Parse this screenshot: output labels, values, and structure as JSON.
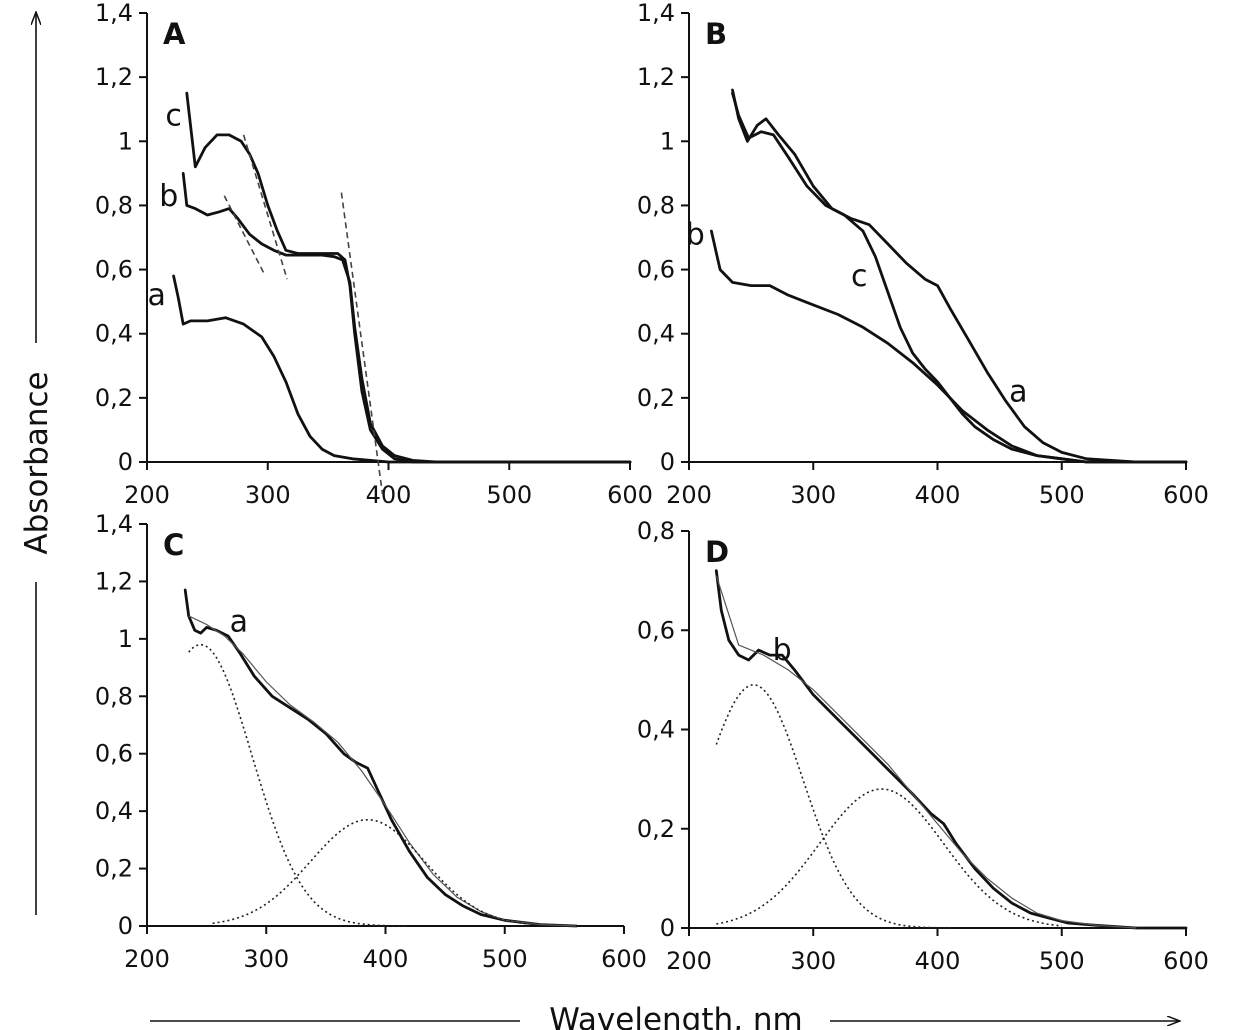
{
  "figure": {
    "ylabel": "Absorbance",
    "xlabel": "Wavelength, nm"
  },
  "chart_data": [
    {
      "type": "line",
      "panel": "A",
      "xlim": [
        200,
        600
      ],
      "ylim": [
        0,
        1.4
      ],
      "x_ticks": [
        "200",
        "300",
        "400",
        "500",
        "600"
      ],
      "y_ticks": [
        "0",
        "0,2",
        "0,4",
        "0,6",
        "0,8",
        "1",
        "1,2",
        "1,4"
      ],
      "series": [
        {
          "name": "a",
          "label_at": [
            208,
            0.52
          ],
          "line_style": "solid",
          "points": [
            [
              222,
              0.58
            ],
            [
              226,
              0.51
            ],
            [
              230,
              0.43
            ],
            [
              236,
              0.44
            ],
            [
              250,
              0.44
            ],
            [
              265,
              0.45
            ],
            [
              280,
              0.43
            ],
            [
              295,
              0.39
            ],
            [
              305,
              0.33
            ],
            [
              315,
              0.25
            ],
            [
              325,
              0.15
            ],
            [
              335,
              0.08
            ],
            [
              345,
              0.04
            ],
            [
              355,
              0.02
            ],
            [
              370,
              0.01
            ],
            [
              400,
              0
            ],
            [
              600,
              0
            ]
          ]
        },
        {
          "name": "b",
          "label_at": [
            218,
            0.83
          ],
          "line_style": "solid",
          "points": [
            [
              230,
              0.9
            ],
            [
              233,
              0.8
            ],
            [
              240,
              0.79
            ],
            [
              250,
              0.77
            ],
            [
              260,
              0.78
            ],
            [
              268,
              0.79
            ],
            [
              275,
              0.76
            ],
            [
              285,
              0.71
            ],
            [
              295,
              0.68
            ],
            [
              305,
              0.66
            ],
            [
              315,
              0.645
            ],
            [
              330,
              0.645
            ],
            [
              345,
              0.645
            ],
            [
              355,
              0.64
            ],
            [
              362,
              0.63
            ],
            [
              368,
              0.56
            ],
            [
              372,
              0.42
            ],
            [
              378,
              0.26
            ],
            [
              385,
              0.12
            ],
            [
              395,
              0.05
            ],
            [
              405,
              0.02
            ],
            [
              420,
              0.005
            ],
            [
              440,
              0
            ],
            [
              600,
              0
            ]
          ]
        },
        {
          "name": "c",
          "label_at": [
            222,
            1.08
          ],
          "line_style": "solid",
          "points": [
            [
              233,
              1.15
            ],
            [
              236,
              1.05
            ],
            [
              240,
              0.92
            ],
            [
              248,
              0.98
            ],
            [
              258,
              1.02
            ],
            [
              268,
              1.02
            ],
            [
              278,
              1.0
            ],
            [
              285,
              0.96
            ],
            [
              292,
              0.9
            ],
            [
              300,
              0.8
            ],
            [
              308,
              0.72
            ],
            [
              315,
              0.66
            ],
            [
              325,
              0.65
            ],
            [
              340,
              0.65
            ],
            [
              350,
              0.65
            ],
            [
              358,
              0.65
            ],
            [
              364,
              0.63
            ],
            [
              368,
              0.55
            ],
            [
              372,
              0.4
            ],
            [
              378,
              0.22
            ],
            [
              385,
              0.1
            ],
            [
              395,
              0.04
            ],
            [
              405,
              0.01
            ],
            [
              420,
              0
            ],
            [
              600,
              0
            ]
          ]
        },
        {
          "name": "",
          "line_style": "dashed",
          "points": [
            [
              264,
              0.83
            ],
            [
              298,
              0.58
            ]
          ]
        },
        {
          "name": "",
          "line_style": "dashed",
          "points": [
            [
              280,
              1.02
            ],
            [
              316,
              0.57
            ]
          ]
        },
        {
          "name": "",
          "line_style": "dashed",
          "points": [
            [
              361,
              0.84
            ],
            [
              395,
              -0.1
            ]
          ]
        }
      ]
    },
    {
      "type": "line",
      "panel": "B",
      "xlim": [
        200,
        600
      ],
      "ylim": [
        0,
        1.4
      ],
      "x_ticks": [
        "200",
        "300",
        "400",
        "500",
        "600"
      ],
      "y_ticks": [
        "0",
        "0,2",
        "0,4",
        "0,6",
        "0,8",
        "1",
        "1,2",
        "1,4"
      ],
      "series": [
        {
          "name": "a",
          "label_at": [
            465,
            0.22
          ],
          "line_style": "solid",
          "points": [
            [
              235,
              1.16
            ],
            [
              240,
              1.07
            ],
            [
              247,
              1.0
            ],
            [
              255,
              1.05
            ],
            [
              262,
              1.07
            ],
            [
              272,
              1.02
            ],
            [
              285,
              0.96
            ],
            [
              300,
              0.86
            ],
            [
              315,
              0.79
            ],
            [
              330,
              0.76
            ],
            [
              345,
              0.74
            ],
            [
              360,
              0.68
            ],
            [
              375,
              0.62
            ],
            [
              390,
              0.57
            ],
            [
              400,
              0.55
            ],
            [
              410,
              0.48
            ],
            [
              425,
              0.38
            ],
            [
              440,
              0.28
            ],
            [
              455,
              0.19
            ],
            [
              470,
              0.11
            ],
            [
              485,
              0.06
            ],
            [
              500,
              0.03
            ],
            [
              520,
              0.01
            ],
            [
              560,
              0
            ],
            [
              600,
              0
            ]
          ]
        },
        {
          "name": "b",
          "label_at": [
            205,
            0.71
          ],
          "line_style": "solid",
          "points": [
            [
              218,
              0.72
            ],
            [
              225,
              0.6
            ],
            [
              235,
              0.56
            ],
            [
              250,
              0.55
            ],
            [
              265,
              0.55
            ],
            [
              280,
              0.52
            ],
            [
              300,
              0.49
            ],
            [
              320,
              0.46
            ],
            [
              340,
              0.42
            ],
            [
              360,
              0.37
            ],
            [
              380,
              0.31
            ],
            [
              400,
              0.24
            ],
            [
              420,
              0.16
            ],
            [
              440,
              0.1
            ],
            [
              460,
              0.05
            ],
            [
              480,
              0.02
            ],
            [
              500,
              0.01
            ],
            [
              520,
              0
            ],
            [
              600,
              0
            ]
          ]
        },
        {
          "name": "c",
          "label_at": [
            337,
            0.58
          ],
          "line_style": "solid",
          "points": [
            [
              235,
              1.15
            ],
            [
              240,
              1.08
            ],
            [
              248,
              1.01
            ],
            [
              258,
              1.03
            ],
            [
              268,
              1.02
            ],
            [
              280,
              0.95
            ],
            [
              295,
              0.86
            ],
            [
              310,
              0.8
            ],
            [
              325,
              0.77
            ],
            [
              340,
              0.72
            ],
            [
              350,
              0.64
            ],
            [
              360,
              0.53
            ],
            [
              370,
              0.42
            ],
            [
              380,
              0.34
            ],
            [
              390,
              0.29
            ],
            [
              400,
              0.25
            ],
            [
              410,
              0.2
            ],
            [
              420,
              0.15
            ],
            [
              430,
              0.11
            ],
            [
              445,
              0.07
            ],
            [
              460,
              0.04
            ],
            [
              480,
              0.02
            ],
            [
              500,
              0.01
            ],
            [
              520,
              0
            ],
            [
              600,
              0
            ]
          ]
        }
      ]
    },
    {
      "type": "line",
      "panel": "C",
      "xlim": [
        200,
        600
      ],
      "ylim": [
        0,
        1.4
      ],
      "x_ticks": [
        "200",
        "300",
        "400",
        "500",
        "600"
      ],
      "y_ticks": [
        "0",
        "0,2",
        "0,4",
        "0,6",
        "0,8",
        "1",
        "1,2",
        "1,4"
      ],
      "series": [
        {
          "name": "a",
          "label_at": [
            277,
            1.06
          ],
          "line_style": "solid",
          "points": [
            [
              232,
              1.17
            ],
            [
              235,
              1.08
            ],
            [
              240,
              1.03
            ],
            [
              245,
              1.02
            ],
            [
              250,
              1.04
            ],
            [
              258,
              1.03
            ],
            [
              268,
              1.01
            ],
            [
              278,
              0.95
            ],
            [
              290,
              0.87
            ],
            [
              305,
              0.8
            ],
            [
              320,
              0.76
            ],
            [
              335,
              0.72
            ],
            [
              350,
              0.67
            ],
            [
              365,
              0.6
            ],
            [
              375,
              0.57
            ],
            [
              385,
              0.55
            ],
            [
              395,
              0.46
            ],
            [
              405,
              0.37
            ],
            [
              420,
              0.26
            ],
            [
              435,
              0.17
            ],
            [
              450,
              0.11
            ],
            [
              465,
              0.07
            ],
            [
              480,
              0.04
            ],
            [
              500,
              0.02
            ],
            [
              530,
              0.005
            ],
            [
              560,
              0
            ]
          ]
        },
        {
          "name": "",
          "line_style": "fit",
          "points": [
            [
              235,
              1.08
            ],
            [
              250,
              1.05
            ],
            [
              265,
              1.01
            ],
            [
              280,
              0.95
            ],
            [
              300,
              0.85
            ],
            [
              320,
              0.77
            ],
            [
              340,
              0.71
            ],
            [
              360,
              0.64
            ],
            [
              380,
              0.54
            ],
            [
              400,
              0.42
            ],
            [
              420,
              0.29
            ],
            [
              440,
              0.18
            ],
            [
              460,
              0.1
            ],
            [
              480,
              0.05
            ],
            [
              500,
              0.02
            ],
            [
              530,
              0.005
            ],
            [
              560,
              0
            ]
          ]
        },
        {
          "name": "",
          "line_style": "dotted",
          "gaussian": {
            "amplitude": 0.98,
            "center": 245,
            "sigma": 43
          },
          "range": [
            235,
            420
          ]
        },
        {
          "name": "",
          "line_style": "dotted",
          "gaussian": {
            "amplitude": 0.37,
            "center": 385,
            "sigma": 48
          },
          "range": [
            255,
            520
          ]
        }
      ]
    },
    {
      "type": "line",
      "panel": "D",
      "xlim": [
        200,
        600
      ],
      "ylim": [
        0,
        0.8
      ],
      "x_ticks": [
        "200",
        "300",
        "400",
        "500",
        "600"
      ],
      "y_ticks": [
        "0",
        "0,2",
        "0,4",
        "0,6",
        "0,8"
      ],
      "series": [
        {
          "name": "b",
          "label_at": [
            275,
            0.56
          ],
          "line_style": "solid",
          "points": [
            [
              222,
              0.72
            ],
            [
              226,
              0.64
            ],
            [
              232,
              0.58
            ],
            [
              240,
              0.55
            ],
            [
              248,
              0.54
            ],
            [
              256,
              0.56
            ],
            [
              265,
              0.55
            ],
            [
              275,
              0.55
            ],
            [
              285,
              0.52
            ],
            [
              300,
              0.47
            ],
            [
              320,
              0.42
            ],
            [
              340,
              0.37
            ],
            [
              360,
              0.32
            ],
            [
              380,
              0.27
            ],
            [
              395,
              0.23
            ],
            [
              405,
              0.21
            ],
            [
              415,
              0.17
            ],
            [
              430,
              0.12
            ],
            [
              445,
              0.08
            ],
            [
              460,
              0.05
            ],
            [
              475,
              0.03
            ],
            [
              490,
              0.02
            ],
            [
              505,
              0.01
            ],
            [
              530,
              0.005
            ],
            [
              560,
              0
            ],
            [
              600,
              0
            ]
          ]
        },
        {
          "name": "",
          "line_style": "fit",
          "points": [
            [
              222,
              0.71
            ],
            [
              240,
              0.57
            ],
            [
              260,
              0.55
            ],
            [
              280,
              0.52
            ],
            [
              300,
              0.48
            ],
            [
              320,
              0.43
            ],
            [
              340,
              0.38
            ],
            [
              360,
              0.33
            ],
            [
              380,
              0.27
            ],
            [
              400,
              0.21
            ],
            [
              420,
              0.15
            ],
            [
              440,
              0.1
            ],
            [
              460,
              0.06
            ],
            [
              480,
              0.03
            ],
            [
              500,
              0.015
            ],
            [
              530,
              0.005
            ],
            [
              560,
              0
            ]
          ]
        },
        {
          "name": "",
          "line_style": "dotted",
          "gaussian": {
            "amplitude": 0.49,
            "center": 252,
            "sigma": 40
          },
          "range": [
            222,
            410
          ]
        },
        {
          "name": "",
          "line_style": "dotted",
          "gaussian": {
            "amplitude": 0.28,
            "center": 355,
            "sigma": 50
          },
          "range": [
            222,
            500
          ]
        }
      ]
    }
  ]
}
